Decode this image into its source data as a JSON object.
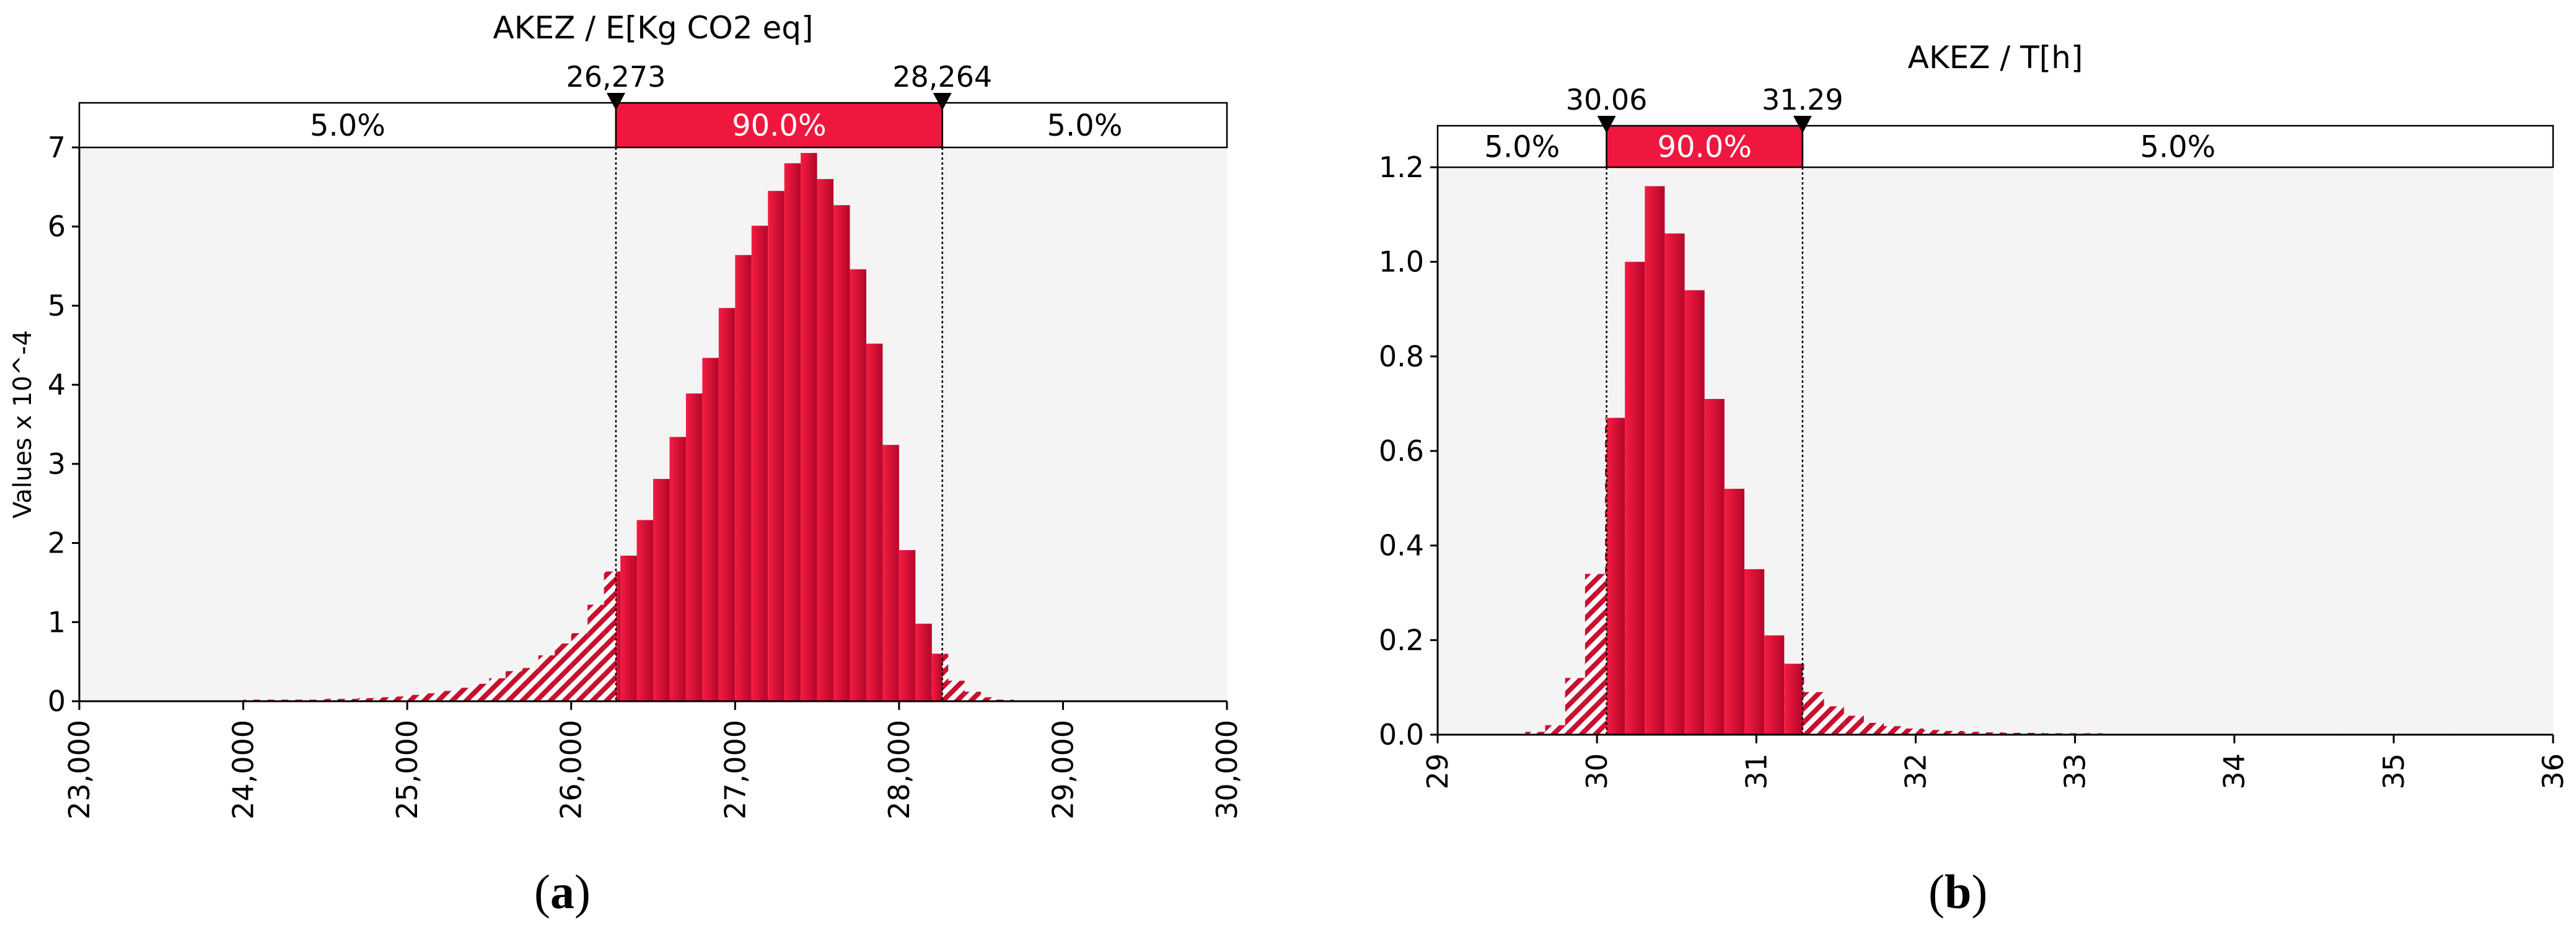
{
  "panels": [
    {
      "caption_open": "(",
      "caption_letter": "a",
      "caption_close": ")",
      "chart_data": {
        "type": "bar",
        "title": "AKEZ / E[Kg CO2 eq]",
        "ylabel": "Values x 10^-4",
        "xlim": [
          23000,
          30000
        ],
        "ylim": [
          0,
          7
        ],
        "x_ticks": [
          23000,
          24000,
          25000,
          26000,
          27000,
          28000,
          29000,
          30000
        ],
        "x_tick_labels": [
          "23,000",
          "24,000",
          "25,000",
          "26,000",
          "27,000",
          "28,000",
          "29,000",
          "30,000"
        ],
        "y_ticks": [
          0,
          1,
          2,
          3,
          4,
          5,
          6,
          7
        ],
        "y_tick_labels": [
          "0",
          "1",
          "2",
          "3",
          "4",
          "5",
          "6",
          "7"
        ],
        "bin_start": 24000,
        "bin_width": 100,
        "values": [
          0.02,
          0.02,
          0.02,
          0.02,
          0.02,
          0.03,
          0.03,
          0.04,
          0.05,
          0.06,
          0.08,
          0.1,
          0.13,
          0.17,
          0.22,
          0.29,
          0.38,
          0.42,
          0.58,
          0.73,
          0.86,
          1.22,
          1.64,
          1.84,
          2.29,
          2.81,
          3.34,
          3.89,
          4.34,
          4.97,
          5.64,
          6.01,
          6.45,
          6.8,
          6.93,
          6.6,
          6.27,
          5.46,
          4.52,
          3.24,
          1.91,
          0.98,
          0.6,
          0.26,
          0.12,
          0.05,
          0.02
        ],
        "delimiters": {
          "left": 26273,
          "right": 28264,
          "left_label": "26,273",
          "right_label": "28,264",
          "left_pct": "5.0%",
          "mid_pct": "90.0%",
          "right_pct": "5.0%"
        },
        "grid": false
      }
    },
    {
      "caption_open": "(",
      "caption_letter": "b",
      "caption_close": ")",
      "chart_data": {
        "type": "bar",
        "title": "AKEZ / T[h]",
        "ylabel": "",
        "xlim": [
          29,
          36
        ],
        "ylim": [
          0,
          1.2
        ],
        "x_ticks": [
          29,
          30,
          31,
          32,
          33,
          34,
          35,
          36
        ],
        "x_tick_labels": [
          "29",
          "30",
          "31",
          "32",
          "33",
          "34",
          "35",
          "36"
        ],
        "y_ticks": [
          0,
          0.2,
          0.4,
          0.6,
          0.8,
          1.0,
          1.2
        ],
        "y_tick_labels": [
          "0.0",
          "0.2",
          "0.4",
          "0.6",
          "0.8",
          "1.0",
          "1.2"
        ],
        "bin_start": 29.55,
        "bin_width": 0.125,
        "values": [
          0.006,
          0.02,
          0.12,
          0.34,
          0.67,
          1.0,
          1.16,
          1.06,
          0.94,
          0.71,
          0.52,
          0.35,
          0.21,
          0.15,
          0.09,
          0.06,
          0.04,
          0.025,
          0.018,
          0.013,
          0.01,
          0.008,
          0.006,
          0.005,
          0.004,
          0.004,
          0.003,
          0.003,
          0.003,
          0.002,
          0.002,
          0.002,
          0.002,
          0.002,
          0.002,
          0.002,
          0.002,
          0.002,
          0.002,
          0.002,
          0.002,
          0.002,
          0.002,
          0.002,
          0.002,
          0.002,
          0.002,
          0.002
        ],
        "delimiters": {
          "left": 30.06,
          "right": 31.29,
          "left_label": "30.06",
          "right_label": "31.29",
          "left_pct": "5.0%",
          "mid_pct": "90.0%",
          "right_pct": "5.0%"
        },
        "grid": false
      }
    }
  ],
  "colors": {
    "bar_light": "#f41c42",
    "bar_dark": "#b5062a",
    "hatch": "#c8102e",
    "plot_bg": "#f4f4f4",
    "band_mid": "#f0173f"
  }
}
